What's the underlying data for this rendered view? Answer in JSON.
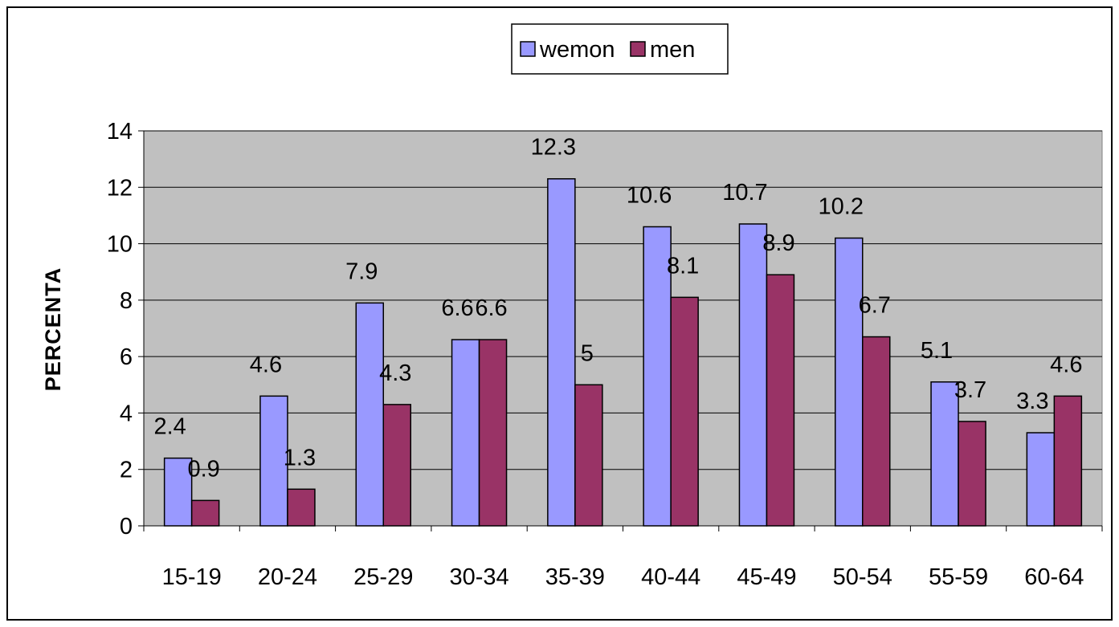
{
  "chart_data": {
    "type": "bar",
    "title": "",
    "xlabel": "",
    "ylabel": "PERCENTA",
    "categories": [
      "15-19",
      "20-24",
      "25-29",
      "30-34",
      "35-39",
      "40-44",
      "45-49",
      "50-54",
      "55-59",
      "60-64"
    ],
    "series": [
      {
        "name": "wemon",
        "color": "#9999ff",
        "values": [
          2.4,
          4.6,
          7.9,
          6.6,
          12.3,
          10.6,
          10.7,
          10.2,
          5.1,
          3.3
        ]
      },
      {
        "name": "men",
        "color": "#993366",
        "values": [
          0.9,
          1.3,
          4.3,
          6.6,
          5,
          8.1,
          8.9,
          6.7,
          3.7,
          4.6
        ]
      }
    ],
    "ylim": [
      0,
      14
    ],
    "yticks": [
      0,
      2,
      4,
      6,
      8,
      10,
      12,
      14
    ],
    "grid": true,
    "plot_background": "#c0c0c0",
    "legend_position": "top"
  }
}
